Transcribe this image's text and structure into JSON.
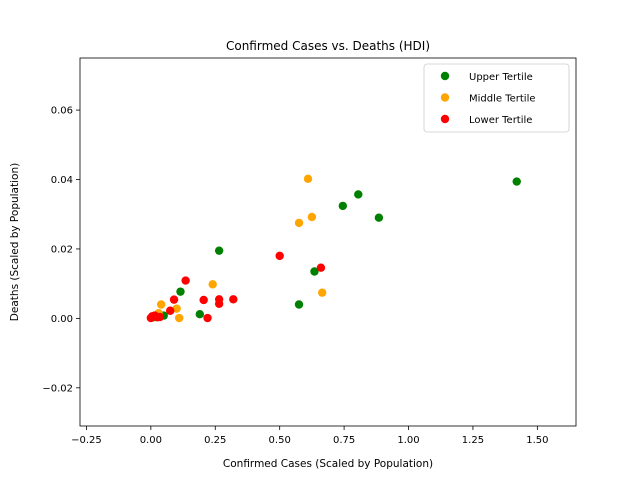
{
  "chart_data": {
    "type": "scatter",
    "title": "Confirmed Cases vs. Deaths (HDI)",
    "xlabel": "Confirmed Cases (Scaled by Population)",
    "ylabel": "Deaths (Scaled by Population)",
    "xlim": [
      -0.275,
      1.65
    ],
    "ylim": [
      -0.031,
      0.075
    ],
    "x_ticks": [
      -0.25,
      0.0,
      0.25,
      0.5,
      0.75,
      1.0,
      1.25,
      1.5
    ],
    "x_tick_labels": [
      "−0.25",
      "0.00",
      "0.25",
      "0.50",
      "0.75",
      "1.00",
      "1.25",
      "1.50"
    ],
    "y_ticks": [
      -0.02,
      0.0,
      0.02,
      0.04,
      0.06
    ],
    "y_tick_labels": [
      "−0.02",
      "0.00",
      "0.02",
      "0.04",
      "0.06"
    ],
    "grid": false,
    "legend_position": "top-right",
    "series": [
      {
        "name": "Upper Tertile",
        "color": "#008000",
        "points": [
          {
            "x": 1.42,
            "y": 0.0394
          },
          {
            "x": 0.805,
            "y": 0.0357
          },
          {
            "x": 0.745,
            "y": 0.0324
          },
          {
            "x": 0.885,
            "y": 0.029
          },
          {
            "x": 0.265,
            "y": 0.0195
          },
          {
            "x": 0.635,
            "y": 0.0135
          },
          {
            "x": 0.575,
            "y": 0.004
          },
          {
            "x": 0.115,
            "y": 0.0077
          },
          {
            "x": 0.19,
            "y": 0.0012
          },
          {
            "x": 0.05,
            "y": 0.0008
          },
          {
            "x": 0.01,
            "y": 0.0003
          }
        ]
      },
      {
        "name": "Middle Tertile",
        "color": "#ffa500",
        "points": [
          {
            "x": 0.61,
            "y": 0.0402
          },
          {
            "x": 0.625,
            "y": 0.0292
          },
          {
            "x": 0.575,
            "y": 0.0275
          },
          {
            "x": 0.665,
            "y": 0.0074
          },
          {
            "x": 0.24,
            "y": 0.0098
          },
          {
            "x": 0.04,
            "y": 0.004
          },
          {
            "x": 0.1,
            "y": 0.0028
          },
          {
            "x": 0.11,
            "y": 0.0001
          },
          {
            "x": 0.03,
            "y": 0.0015
          },
          {
            "x": 0.01,
            "y": 0.0005
          }
        ]
      },
      {
        "name": "Lower Tertile",
        "color": "#ff0000",
        "points": [
          {
            "x": 0.5,
            "y": 0.018
          },
          {
            "x": 0.66,
            "y": 0.0146
          },
          {
            "x": 0.135,
            "y": 0.0109
          },
          {
            "x": 0.09,
            "y": 0.0054
          },
          {
            "x": 0.205,
            "y": 0.0053
          },
          {
            "x": 0.265,
            "y": 0.0055
          },
          {
            "x": 0.32,
            "y": 0.0055
          },
          {
            "x": 0.265,
            "y": 0.0042
          },
          {
            "x": 0.075,
            "y": 0.0022
          },
          {
            "x": 0.22,
            "y": 0.0001
          },
          {
            "x": 0.0,
            "y": 0.0001
          },
          {
            "x": 0.015,
            "y": 0.0008
          },
          {
            "x": 0.025,
            "y": 0.0003
          },
          {
            "x": 0.005,
            "y": 0.0006
          },
          {
            "x": 0.035,
            "y": 0.0004
          }
        ]
      }
    ]
  }
}
